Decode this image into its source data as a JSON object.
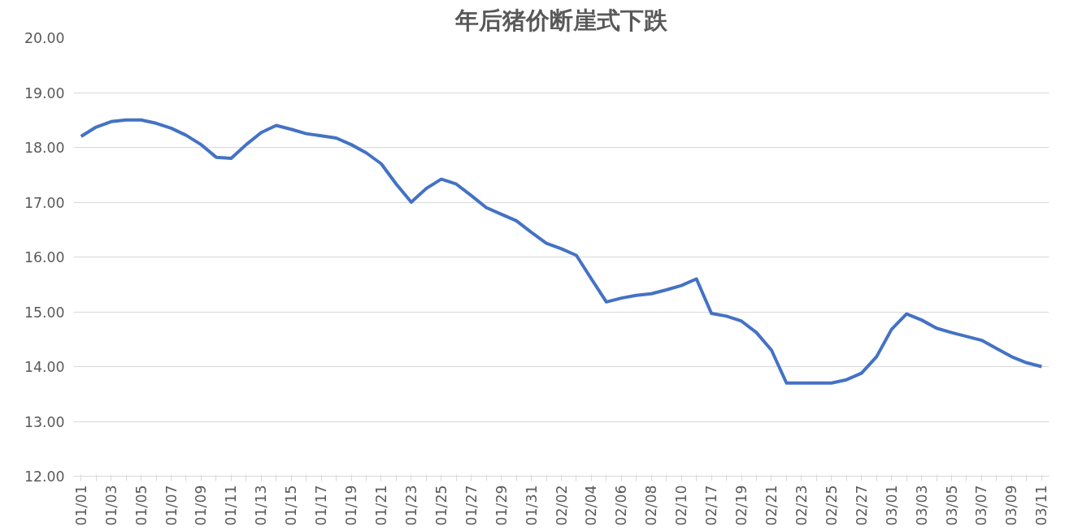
{
  "chart_data": {
    "type": "line",
    "title": "年后猪价断崖式下跌",
    "categories": [
      "01/01",
      null,
      "01/03",
      null,
      "01/05",
      null,
      "01/07",
      null,
      "01/09",
      null,
      "01/11",
      null,
      "01/13",
      null,
      "01/15",
      null,
      "01/17",
      null,
      "01/19",
      null,
      "01/21",
      null,
      "01/23",
      null,
      "01/25",
      null,
      "01/27",
      null,
      "01/29",
      null,
      "01/31",
      null,
      "02/02",
      null,
      "02/04",
      null,
      "02/06",
      null,
      "02/08",
      null,
      "02/10",
      null,
      "02/17",
      null,
      "02/19",
      null,
      "02/21",
      null,
      "02/23",
      null,
      "02/25",
      null,
      "02/27",
      null,
      "03/01",
      null,
      "03/03",
      null,
      "03/05",
      null,
      "03/07",
      null,
      "03/09",
      null,
      "03/11"
    ],
    "series": [
      {
        "color": "#4472c4",
        "values": [
          18.2,
          18.37,
          18.47,
          18.5,
          18.5,
          18.44,
          18.35,
          18.22,
          18.05,
          17.82,
          17.8,
          18.05,
          18.27,
          18.4,
          18.33,
          18.25,
          18.21,
          18.17,
          18.05,
          17.9,
          17.7,
          17.33,
          17.0,
          17.25,
          17.42,
          17.33,
          17.12,
          16.9,
          16.78,
          16.66,
          16.45,
          16.25,
          16.15,
          16.03,
          15.6,
          15.18,
          15.25,
          15.3,
          15.33,
          15.4,
          15.48,
          15.6,
          14.97,
          14.92,
          14.83,
          14.62,
          14.3,
          13.7,
          13.7,
          13.7,
          13.7,
          13.76,
          13.88,
          14.18,
          14.68,
          14.96,
          14.85,
          14.7,
          14.62,
          14.55,
          14.48,
          14.33,
          14.18,
          14.07,
          14.0
        ]
      }
    ],
    "ylim": [
      12,
      20
    ],
    "yticks": [
      {
        "value": 12,
        "label": "12.00"
      },
      {
        "value": 13,
        "label": "13.00"
      },
      {
        "value": 14,
        "label": "14.00"
      },
      {
        "value": 15,
        "label": "15.00"
      },
      {
        "value": 16,
        "label": "16.00"
      },
      {
        "value": 17,
        "label": "17.00"
      },
      {
        "value": 18,
        "label": "18.00"
      },
      {
        "value": 19,
        "label": "19.00"
      },
      {
        "value": 20,
        "label": "20.00"
      }
    ],
    "grid": "y",
    "marker": "none",
    "line_style": "solid"
  }
}
